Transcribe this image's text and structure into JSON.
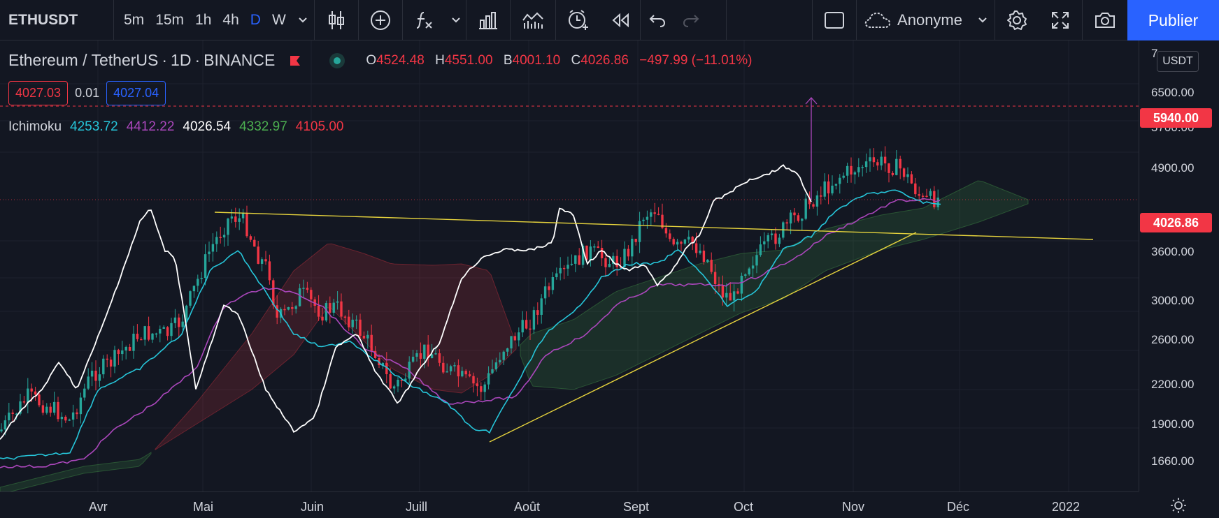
{
  "toolbar": {
    "symbol": "ETHUSDT",
    "timeframes": [
      "5m",
      "15m",
      "1h",
      "4h",
      "D",
      "W"
    ],
    "active_timeframe": "D",
    "user": "Anonyme",
    "publish_label": "Publier"
  },
  "legend": {
    "pair": "Ethereum / TetherUS",
    "interval": "1D",
    "exchange": "BINANCE",
    "ohlc": {
      "o_key": "O",
      "o": "4524.48",
      "h_key": "H",
      "h": "4551.00",
      "b_key": "B",
      "b": "4001.10",
      "c_key": "C",
      "c": "4026.86",
      "change": "−497.99 (−11.01%)"
    },
    "bid": "4027.03",
    "spread": "0.01",
    "ask": "4027.04"
  },
  "indicator": {
    "name": "Ichimoku",
    "values": [
      "4253.72",
      "4412.22",
      "4026.54",
      "4332.97",
      "4105.00"
    ],
    "colors": [
      "#26c6da",
      "#ab47bc",
      "#ffffff",
      "#4caf50",
      "#f23645"
    ]
  },
  "price_axis": {
    "currency": "USDT",
    "labels": [
      "7",
      "6500.00",
      "5700.00",
      "4900.00",
      "3600.00",
      "3000.00",
      "2600.00",
      "2200.00",
      "1900.00",
      "1660.00"
    ],
    "alert_price": "5940.00",
    "last_price": "4026.86"
  },
  "time_axis": {
    "labels": [
      "Avr",
      "Mai",
      "Juin",
      "Juill",
      "Août",
      "Sept",
      "Oct",
      "Nov",
      "Déc",
      "2022"
    ]
  },
  "colors": {
    "background": "#131722",
    "up": "#26a69a",
    "down": "#f23645",
    "accent": "#2962ff",
    "trendline": "#e6d33d",
    "tenkan": "#26c6da",
    "kijun": "#ab47bc",
    "chikou": "#ffffff"
  }
}
